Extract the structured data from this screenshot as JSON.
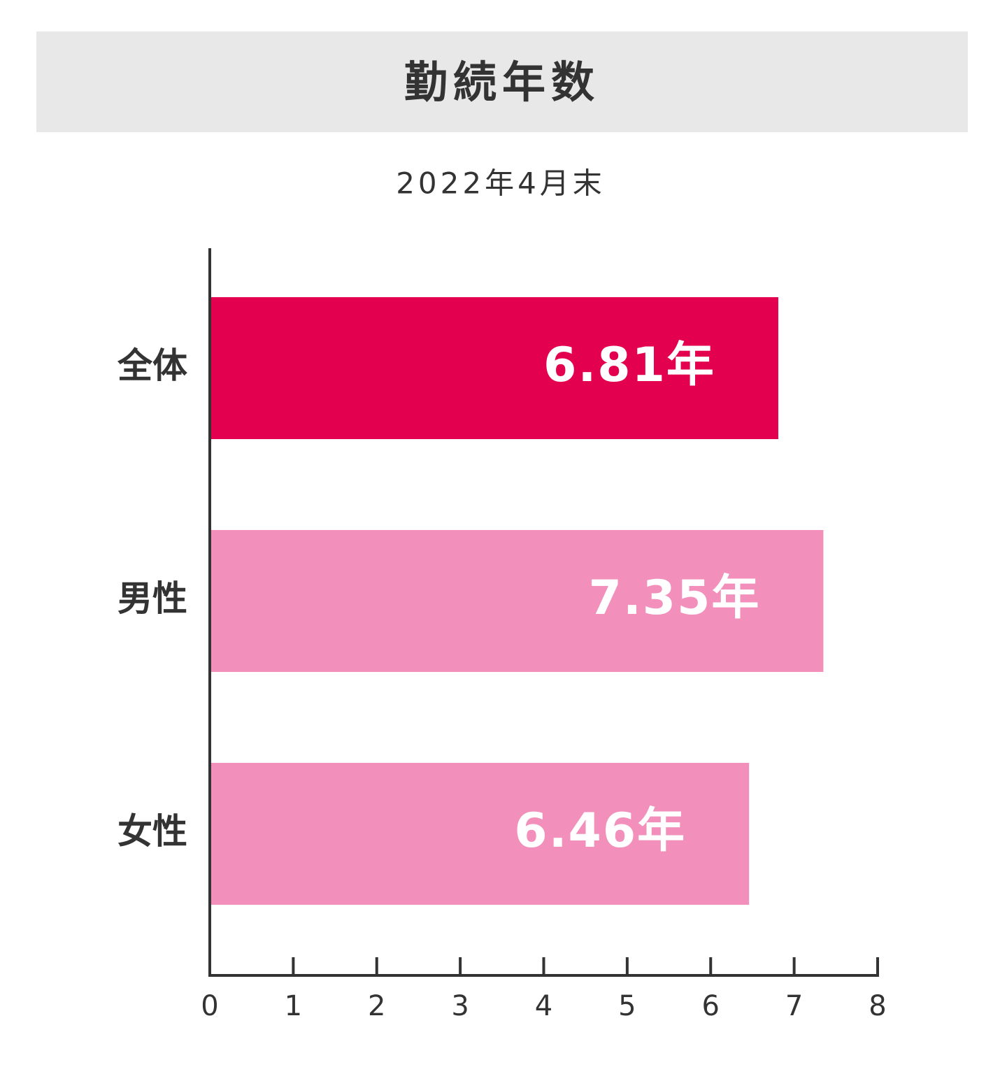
{
  "chart_data": {
    "type": "hbar",
    "title": "勤続年数",
    "subtitle": "2022年4月末",
    "categories": [
      "全体",
      "男性",
      "女性"
    ],
    "values": [
      6.81,
      7.35,
      6.46
    ],
    "value_labels": [
      "6.81年",
      "7.35年",
      "6.46年"
    ],
    "colors": [
      "#e3004f",
      "#f28fbb",
      "#f28fbb"
    ],
    "xlim": [
      0,
      8
    ],
    "xticks": [
      0,
      1,
      2,
      3,
      4,
      5,
      6,
      7,
      8
    ]
  }
}
